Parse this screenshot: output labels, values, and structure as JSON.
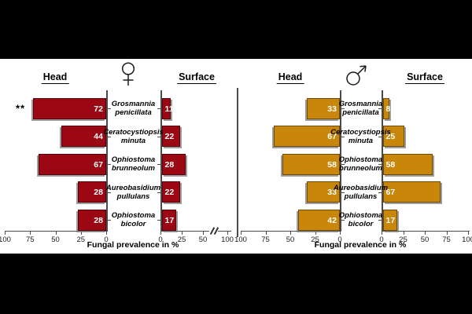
{
  "figure": {
    "bg_color": "#000000",
    "panel_bg": "#ffffff",
    "axis_color": "#4a4a4a"
  },
  "chart_data": [
    {
      "type": "bar",
      "orientation": "horizontal-diverging",
      "group": "female",
      "sex_symbol": "♀",
      "bar_color": "#9B0712",
      "side_labels": {
        "left": "Head",
        "right": "Surface"
      },
      "xlabel": "Fungal prevalence in %",
      "categories": [
        "Grosmannia penicillata",
        "Ceratocystiopsis minuta",
        "Ophiostoma brunneolum",
        "Aureobasidium pullulans",
        "Ophiostoma bicolor"
      ],
      "series": [
        {
          "name": "Head",
          "values": [
            72,
            44,
            67,
            28,
            28
          ]
        },
        {
          "name": "Surface",
          "values": [
            11,
            22,
            28,
            22,
            17
          ]
        }
      ],
      "axes": {
        "head_ticks": [
          100,
          75,
          50,
          25,
          0
        ],
        "surface_ticks": [
          0,
          25,
          50,
          100
        ],
        "surface_axis_break": true,
        "xlim": [
          0,
          100
        ]
      },
      "annotations": [
        {
          "text": "**",
          "category": "Grosmannia penicillata",
          "series": "Head"
        }
      ]
    },
    {
      "type": "bar",
      "orientation": "horizontal-diverging",
      "group": "male",
      "sex_symbol": "♂",
      "bar_color": "#C8870B",
      "side_labels": {
        "left": "Head",
        "right": "Surface"
      },
      "xlabel": "Fungal prevalence in %",
      "categories": [
        "Grosmannia penicillata",
        "Ceratocystiopsis minuta",
        "Ophiostoma brunneolum",
        "Aureobasidium pullulans",
        "Ophiostoma bicolor"
      ],
      "series": [
        {
          "name": "Head",
          "values": [
            33,
            67,
            58,
            33,
            42
          ]
        },
        {
          "name": "Surface",
          "values": [
            8,
            25,
            58,
            67,
            17
          ]
        }
      ],
      "axes": {
        "head_ticks": [
          100,
          75,
          50,
          25,
          0
        ],
        "surface_ticks": [
          0,
          25,
          50,
          75,
          100
        ],
        "surface_axis_break": false,
        "xlim": [
          0,
          100
        ]
      },
      "annotations": []
    }
  ]
}
